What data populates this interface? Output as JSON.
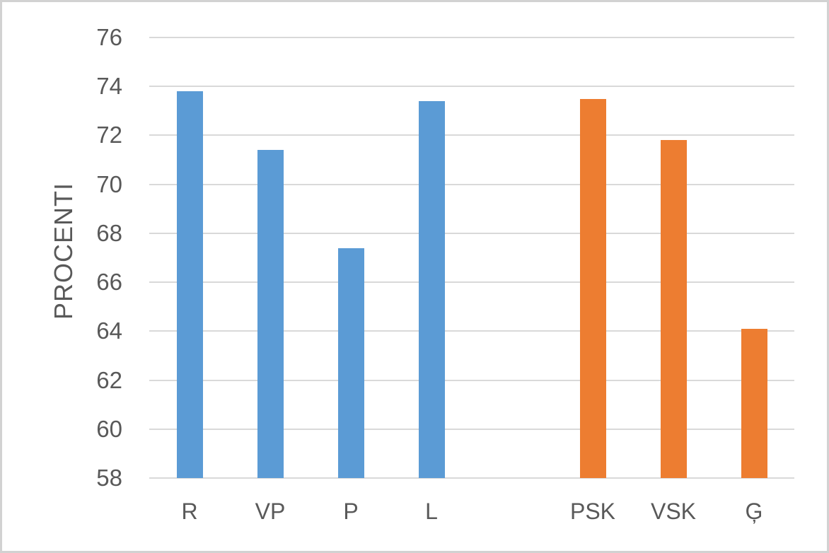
{
  "chart_data": {
    "type": "bar",
    "title": "",
    "xlabel": "",
    "ylabel": "PROCENTI",
    "ylim": [
      58,
      76
    ],
    "ytick_step": 2,
    "yticks": [
      58,
      60,
      62,
      64,
      66,
      68,
      70,
      72,
      74,
      76
    ],
    "grid": true,
    "legend_position": "none",
    "categories": [
      "R",
      "VP",
      "P",
      "L",
      "",
      "PSK",
      "VSK",
      "Ģ"
    ],
    "values": [
      73.8,
      71.4,
      67.4,
      73.4,
      null,
      73.5,
      71.8,
      64.1
    ],
    "bar_colors": [
      "#5B9BD5",
      "#5B9BD5",
      "#5B9BD5",
      "#5B9BD5",
      null,
      "#ED7D31",
      "#ED7D31",
      "#ED7D31"
    ],
    "groups": [
      {
        "name": "blue-group",
        "color": "#5B9BD5",
        "categories": [
          "R",
          "VP",
          "P",
          "L"
        ],
        "values": [
          73.8,
          71.4,
          67.4,
          73.4
        ]
      },
      {
        "name": "orange-group",
        "color": "#ED7D31",
        "categories": [
          "PSK",
          "VSK",
          "Ģ"
        ],
        "values": [
          73.5,
          71.8,
          64.1
        ]
      }
    ],
    "colors": {
      "blue_series": "#5B9BD5",
      "orange_series": "#ED7D31",
      "gridline": "#D9D9D9",
      "axis_text": "#595959",
      "frame_border": "#D2D2D2",
      "background": "#FFFFFF"
    }
  }
}
